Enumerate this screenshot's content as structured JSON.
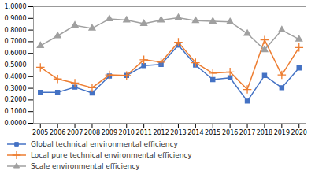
{
  "chart_data": {
    "type": "line",
    "x": [
      2005,
      2006,
      2007,
      2008,
      2009,
      2010,
      2011,
      2012,
      2013,
      2014,
      2015,
      2016,
      2017,
      2018,
      2019,
      2020
    ],
    "xlim": [
      2004.6,
      2020.4
    ],
    "xticks": [
      2005,
      2006,
      2007,
      2008,
      2009,
      2010,
      2011,
      2012,
      2013,
      2014,
      2015,
      2016,
      2017,
      2018,
      2019,
      2020
    ],
    "ylim": [
      0.0,
      1.0
    ],
    "yticks": [
      {
        "value": 0.0,
        "label": "0.0000"
      },
      {
        "value": 0.1,
        "label": "0.1000"
      },
      {
        "value": 0.2,
        "label": "0.2000"
      },
      {
        "value": 0.3,
        "label": "0.3000"
      },
      {
        "value": 0.4,
        "label": "0.4000"
      },
      {
        "value": 0.5,
        "label": "0.5000"
      },
      {
        "value": 0.6,
        "label": "0.6000"
      },
      {
        "value": 0.7,
        "label": "0.7000"
      },
      {
        "value": 0.8,
        "label": "0.8000"
      },
      {
        "value": 0.9,
        "label": "0.9000"
      },
      {
        "value": 1.0,
        "label": "1.0000"
      }
    ],
    "series": [
      {
        "name": "Global technical environmental efficiency",
        "color": "#4472c4",
        "marker": "square",
        "values": [
          0.265,
          0.265,
          0.31,
          0.26,
          0.405,
          0.41,
          0.495,
          0.505,
          0.67,
          0.5,
          0.375,
          0.39,
          0.19,
          0.41,
          0.305,
          0.475
        ]
      },
      {
        "name": "Local pure technical environmental efficiency",
        "color": "#ed7d31",
        "marker": "plus",
        "values": [
          0.48,
          0.38,
          0.345,
          0.305,
          0.415,
          0.41,
          0.545,
          0.525,
          0.695,
          0.52,
          0.43,
          0.44,
          0.29,
          0.715,
          0.415,
          0.65
        ]
      },
      {
        "name": "Scale environmental efficiency",
        "color": "#a0a0a0",
        "marker": "triangle",
        "values": [
          0.665,
          0.75,
          0.84,
          0.815,
          0.895,
          0.885,
          0.855,
          0.885,
          0.905,
          0.88,
          0.875,
          0.87,
          0.77,
          0.63,
          0.8,
          0.72
        ]
      }
    ],
    "legend": "bottom"
  }
}
